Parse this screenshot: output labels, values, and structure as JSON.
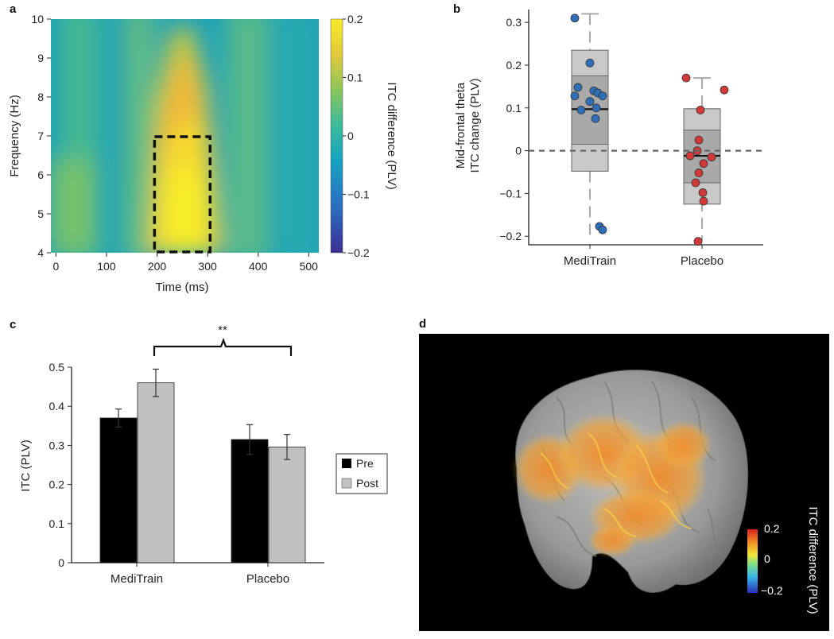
{
  "panels": {
    "a": {
      "label": "a"
    },
    "b": {
      "label": "b"
    },
    "c": {
      "label": "c"
    },
    "d": {
      "label": "d"
    }
  },
  "colors": {
    "meditrain_point": "#2f6fb8",
    "placebo_point": "#d23a3a",
    "pre_bar": "#000000",
    "post_bar": "#c0c0c0",
    "box_outer": "#c8c8c8",
    "box_inner": "#a9a9a9",
    "brain_bg": "#000000"
  },
  "chart_data": [
    {
      "id": "heatmap",
      "type": "heatmap",
      "title": "",
      "xlabel": "Time (ms)",
      "ylabel": "Frequency (Hz)",
      "xlim": [
        -10,
        520
      ],
      "ylim": [
        4,
        10
      ],
      "xticks": [
        0,
        100,
        200,
        300,
        400,
        500
      ],
      "yticks": [
        4,
        5,
        6,
        7,
        8,
        9,
        10
      ],
      "highlight_box": {
        "x": [
          195,
          305
        ],
        "y": [
          4,
          7
        ]
      },
      "colorbar": {
        "label": "ITC difference (PLV)",
        "range": [
          -0.2,
          0.2
        ],
        "ticks": [
          0.2,
          0.1,
          0,
          -0.1,
          -0.2
        ],
        "tick_labels": [
          "0.2",
          "0.1",
          "0",
          "−0.1",
          "−0.2"
        ]
      }
    },
    {
      "id": "boxplot",
      "type": "scatter",
      "ylabel": "Mid-frontal theta ITC change (PLV)",
      "ylabel_lines": [
        "Mid-frontal theta",
        "ITC change (PLV)"
      ],
      "ylim": [
        -0.22,
        0.33
      ],
      "yticks": [
        -0.2,
        -0.1,
        0,
        0.1,
        0.2,
        0.3
      ],
      "ytick_labels": [
        "−0.2",
        "−0.1",
        "0",
        "0.1",
        "0.2",
        "0.3"
      ],
      "categories": [
        "MediTrain",
        "Placebo"
      ],
      "reference_line": 0,
      "groups": [
        {
          "name": "MediTrain",
          "whisker": [
            -0.21,
            0.32
          ],
          "box": [
            -0.048,
            0.235
          ],
          "inner": [
            0.015,
            0.175
          ],
          "median": 0.097,
          "points": [
            0.31,
            0.205,
            0.148,
            0.14,
            0.135,
            0.128,
            0.128,
            0.115,
            0.1,
            0.095,
            0.075,
            -0.177,
            -0.185
          ]
        },
        {
          "name": "Placebo",
          "whisker": [
            -0.21,
            0.17
          ],
          "box": [
            -0.125,
            0.098
          ],
          "inner": [
            -0.075,
            0.048
          ],
          "median": -0.012,
          "points": [
            0.17,
            0.142,
            0.095,
            0.025,
            0.0,
            -0.012,
            -0.015,
            -0.03,
            -0.052,
            -0.075,
            -0.098,
            -0.118,
            -0.212
          ]
        }
      ]
    },
    {
      "id": "bars",
      "type": "bar",
      "xlabel": "",
      "ylabel": "ITC (PLV)",
      "ylim": [
        0,
        0.5
      ],
      "yticks": [
        0,
        0.1,
        0.2,
        0.3,
        0.4,
        0.5
      ],
      "ytick_labels": [
        "0",
        "0.1",
        "0.2",
        "0.3",
        "0.4",
        "0.5"
      ],
      "categories": [
        "MediTrain",
        "Placebo"
      ],
      "series": [
        {
          "name": "Pre",
          "values": [
            0.37,
            0.315
          ],
          "errors": [
            0.023,
            0.038
          ]
        },
        {
          "name": "Post",
          "values": [
            0.46,
            0.296
          ],
          "errors": [
            0.035,
            0.032
          ]
        }
      ],
      "significance": "**",
      "legend_position": "right"
    },
    {
      "id": "brain",
      "type": "heatmap",
      "colorbar": {
        "label": "ITC difference (PLV)",
        "ticks": [
          0.2,
          0,
          -0.2
        ],
        "tick_labels": [
          "0.2",
          "0",
          "−0.2"
        ]
      }
    }
  ]
}
